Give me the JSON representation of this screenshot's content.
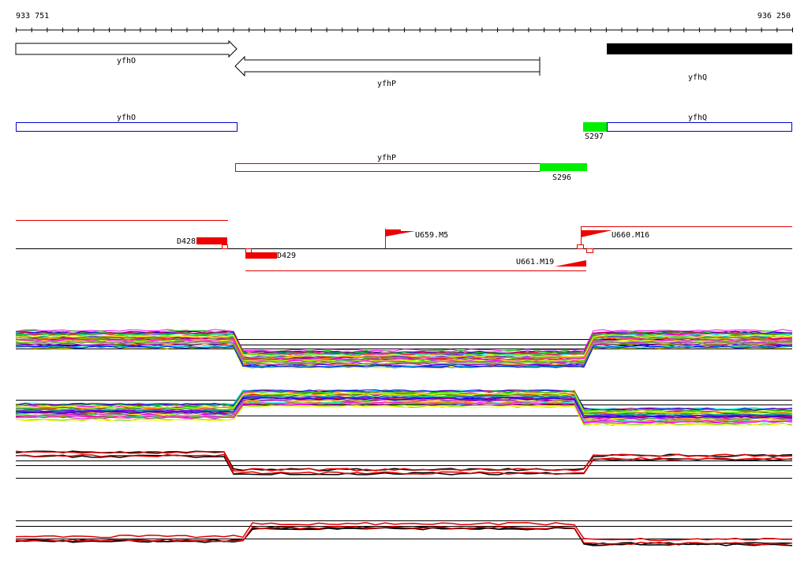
{
  "ruler": {
    "start": "933 751",
    "end": "936 250"
  },
  "genes": [
    {
      "label": "yfhO"
    },
    {
      "label": "yfhP"
    },
    {
      "label": "yfhQ"
    }
  ],
  "transcripts": [
    {
      "label": "yfhO"
    },
    {
      "label": "yfhQ"
    },
    {
      "label": "yfhP"
    }
  ],
  "segments": [
    {
      "label": "S297"
    },
    {
      "label": "S296"
    }
  ],
  "features": [
    {
      "label": "D428"
    },
    {
      "label": "D429"
    },
    {
      "label": "U659.M5"
    },
    {
      "label": "U660.M16"
    },
    {
      "label": "U661.M19"
    }
  ]
}
